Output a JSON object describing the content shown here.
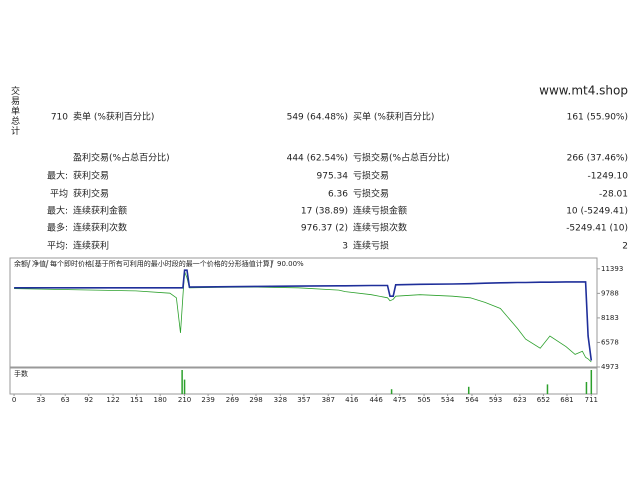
{
  "header": {
    "vertical_label": "交易单总计",
    "site": "www.mt4.shop"
  },
  "table": {
    "rows": [
      [
        "710",
        "卖单 (%获利百分比)",
        "549 (64.48%)",
        "买单 (%获利百分比)",
        "161 (55.90%)"
      ],
      [
        null,
        "盈利交易(%占总百分比)",
        "444 (62.54%)",
        "亏损交易(%占总百分比)",
        "266 (37.46%)"
      ],
      [
        "最大:",
        "获利交易",
        "975.34",
        "亏损交易",
        "-1249.10"
      ],
      [
        "平均",
        "获利交易",
        "6.36",
        "亏损交易",
        "-28.01"
      ],
      [
        "最大:",
        "连续获利金额",
        "17 (38.89)",
        "连续亏损金额",
        "10 (-5249.41)"
      ],
      [
        "最多:",
        "连续获利次数",
        "976.37 (2)",
        "连续亏损次数",
        "-5249.41 (10)"
      ],
      [
        "平均:",
        "连续获利",
        "3",
        "连续亏损",
        "2"
      ]
    ]
  },
  "chart_data": {
    "type": "line",
    "model_note": "每个即时价格[基于所有可利用的最小时段的最一个价格的分形插值计算]",
    "quality": "90.00%",
    "x": [
      0,
      50,
      100,
      150,
      192,
      200,
      205,
      208,
      210,
      213,
      216,
      250,
      300,
      350,
      400,
      408,
      440,
      460,
      463,
      467,
      470,
      500,
      540,
      562,
      580,
      599,
      620,
      630,
      648,
      660,
      680,
      691,
      700,
      704,
      707,
      711
    ],
    "series": [
      {
        "name": "余额",
        "color": "#1f2f9a",
        "values": [
          10150,
          10150,
          10150,
          10150,
          10150,
          10150,
          10150,
          10150,
          11300,
          11300,
          10200,
          10220,
          10240,
          10260,
          10280,
          10280,
          10300,
          10300,
          9600,
          9600,
          10350,
          10380,
          10400,
          10420,
          10450,
          10480,
          10500,
          10500,
          10520,
          10520,
          10540,
          10540,
          10540,
          10540,
          7000,
          5400
        ]
      },
      {
        "name": "净值",
        "color": "#2ca02c",
        "values": [
          10100,
          10050,
          10000,
          9950,
          9800,
          9500,
          7200,
          9600,
          11200,
          10800,
          10150,
          10180,
          10200,
          10150,
          10000,
          9900,
          9700,
          9500,
          9300,
          9400,
          9600,
          9700,
          9600,
          9500,
          9200,
          8800,
          7500,
          6800,
          6200,
          7000,
          6300,
          5800,
          6000,
          5600,
          5500,
          5300
        ]
      }
    ],
    "xlim": [
      -5,
      718
    ],
    "xticks": [
      0,
      33,
      63,
      92,
      122,
      151,
      180,
      210,
      239,
      269,
      298,
      328,
      357,
      387,
      416,
      446,
      475,
      505,
      534,
      564,
      593,
      623,
      652,
      681,
      711
    ],
    "ylim": [
      4973,
      12100
    ],
    "yticks": [
      11393,
      9788,
      8183,
      6578,
      4973
    ],
    "lots": {
      "label": "手数",
      "color": "#2ca02c",
      "x": [
        207,
        210,
        465,
        560,
        657,
        705,
        711
      ],
      "values": [
        1,
        0.6,
        0.2,
        0.3,
        0.4,
        0.5,
        1
      ],
      "ylim": [
        0,
        1
      ]
    }
  }
}
